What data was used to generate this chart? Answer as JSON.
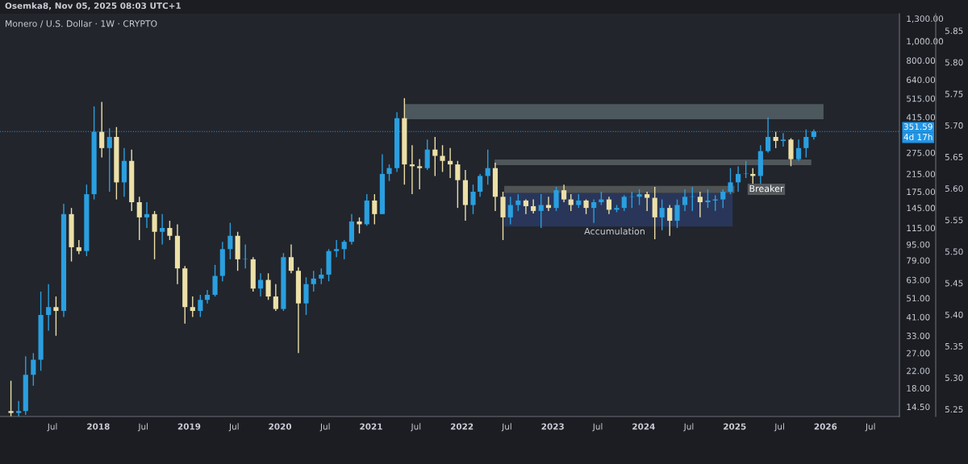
{
  "chart_data": {
    "type": "candlestick",
    "title": "Monero / U.S. Dollar · 1W · CRYPTO",
    "annotations": [
      "Osemka8, Nov 05, 2025 08:03 UTC+1",
      "4d 17h",
      "Accumulation",
      "Breaker"
    ],
    "log": true,
    "xlim": [
      "2016-12-02",
      "2026-10-25"
    ],
    "xticks": [
      {
        "value": "2017-07-01",
        "label": "Jul"
      },
      {
        "value": "2018-01-01",
        "label": "2018"
      },
      {
        "value": "2018-07-01",
        "label": "Jul"
      },
      {
        "value": "2019-01-01",
        "label": "2019"
      },
      {
        "value": "2019-07-01",
        "label": "Jul"
      },
      {
        "value": "2020-01-01",
        "label": "2020"
      },
      {
        "value": "2020-07-01",
        "label": "Jul"
      },
      {
        "value": "2021-01-01",
        "label": "2021"
      },
      {
        "value": "2021-07-01",
        "label": "Jul"
      },
      {
        "value": "2022-01-01",
        "label": "2022"
      },
      {
        "value": "2022-07-01",
        "label": "Jul"
      },
      {
        "value": "2023-01-01",
        "label": "2023"
      },
      {
        "value": "2023-07-01",
        "label": "Jul"
      },
      {
        "value": "2024-01-01",
        "label": "2024"
      },
      {
        "value": "2024-07-01",
        "label": "Jul"
      },
      {
        "value": "2025-01-01",
        "label": "2025"
      },
      {
        "value": "2025-07-01",
        "label": "Jul"
      },
      {
        "value": "2026-01-01",
        "label": "2026"
      },
      {
        "value": "2026-07-01",
        "label": "Jul"
      }
    ],
    "ylim": [
      12.96,
      1375
    ],
    "yticks": [
      {
        "value": 14.5,
        "label": "14.50"
      },
      {
        "value": 18,
        "label": "18.00"
      },
      {
        "value": 22,
        "label": "22.00"
      },
      {
        "value": 27,
        "label": "27.00"
      },
      {
        "value": 33,
        "label": "33.00"
      },
      {
        "value": 41,
        "label": "41.00"
      },
      {
        "value": 51,
        "label": "51.00"
      },
      {
        "value": 63,
        "label": "63.00"
      },
      {
        "value": 79,
        "label": "79.00"
      },
      {
        "value": 95,
        "label": "95.00"
      },
      {
        "value": 115,
        "label": "115.00"
      },
      {
        "value": 145,
        "label": "145.00"
      },
      {
        "value": 175,
        "label": "175.00"
      },
      {
        "value": 215,
        "label": "215.00"
      },
      {
        "value": 275,
        "label": "275.00"
      },
      {
        "value": 415,
        "label": "415.00"
      },
      {
        "value": 515,
        "label": "515.00"
      },
      {
        "value": 640,
        "label": "640.00"
      },
      {
        "value": 800,
        "label": "800.00"
      },
      {
        "value": 1000,
        "label": "1,000.00"
      },
      {
        "value": 1300,
        "label": "1,300.00"
      }
    ],
    "y2lim": [
      5.2385,
      5.877
    ],
    "y2ticks": [
      5.25,
      {
        "value": 5.3,
        "label": "5.30"
      },
      5.35,
      {
        "value": 5.4,
        "label": "5.40"
      },
      5.45,
      {
        "value": 5.5,
        "label": "5.50"
      },
      5.55,
      {
        "value": 5.6,
        "label": "5.60"
      },
      5.65,
      {
        "value": 5.7,
        "label": "5.70"
      },
      5.75,
      {
        "value": 5.8,
        "label": "5.80"
      },
      5.85
    ],
    "ref_lines": [
      {
        "axis": "y",
        "value": 351.59,
        "label": "351.59",
        "color": "#2196e6",
        "line_style": "dotted"
      }
    ],
    "series": [
      {
        "type": "line",
        "x": [
          "2021-05-17",
          "2025-12-24"
        ],
        "values": [
          null,
          null
        ],
        "upper": [
          483,
          483
        ],
        "lower": [
          405,
          405
        ],
        "color": "#4d585e"
      },
      {
        "type": "line",
        "x": [
          "2022-05-12",
          "2025-11-05"
        ],
        "values": [
          null,
          null
        ],
        "upper": [
          254,
          254
        ],
        "lower": [
          238,
          238
        ],
        "color": "#50565a"
      },
      {
        "type": "line",
        "x": [
          "2022-06-20",
          "2024-12-31"
        ],
        "values": [
          null,
          null
        ],
        "upper": [
          187,
          187
        ],
        "lower": [
          172,
          172
        ],
        "color": "#4f5354"
      },
      {
        "type": "line",
        "x": [
          "2022-06-20",
          "2024-12-24"
        ],
        "values": [
          null,
          null
        ],
        "upper": [
          172,
          172
        ],
        "lower": [
          117,
          117
        ],
        "color": "#293659"
      },
      {
        "type": "candlestick",
        "x": [
          "2017-01-15",
          "2017-02-15",
          "2017-03-15",
          "2017-04-15",
          "2017-05-15",
          "2017-06-15",
          "2017-07-15",
          "2017-08-15",
          "2017-09-15",
          "2017-10-15",
          "2017-11-15",
          "2017-12-15",
          "2018-01-15",
          "2018-02-15",
          "2018-03-15",
          "2018-04-15",
          "2018-05-15",
          "2018-06-15",
          "2018-07-15",
          "2018-08-15",
          "2018-09-15",
          "2018-10-15",
          "2018-11-15",
          "2018-12-15",
          "2019-01-15",
          "2019-02-15",
          "2019-03-15",
          "2019-04-15",
          "2019-05-15",
          "2019-06-15",
          "2019-07-15",
          "2019-08-15",
          "2019-09-15",
          "2019-10-15",
          "2019-11-15",
          "2019-12-15",
          "2020-01-15",
          "2020-02-15",
          "2020-03-15",
          "2020-04-15",
          "2020-05-15",
          "2020-06-15",
          "2020-07-15",
          "2020-08-15",
          "2020-09-15",
          "2020-10-15",
          "2020-11-15",
          "2020-12-15",
          "2021-01-15",
          "2021-02-15",
          "2021-03-15",
          "2021-04-15",
          "2021-05-15",
          "2021-06-15",
          "2021-07-15",
          "2021-08-15",
          "2021-09-15",
          "2021-10-15",
          "2021-11-15",
          "2021-12-15",
          "2022-01-15",
          "2022-02-15",
          "2022-03-15",
          "2022-04-15",
          "2022-05-15",
          "2022-06-15",
          "2022-07-15",
          "2022-08-15",
          "2022-09-15",
          "2022-10-15",
          "2022-11-15",
          "2022-12-15",
          "2023-01-15",
          "2023-02-15",
          "2023-03-15",
          "2023-04-15",
          "2023-05-15",
          "2023-06-15",
          "2023-07-15",
          "2023-08-15",
          "2023-09-15",
          "2023-10-15",
          "2023-11-15",
          "2023-12-15",
          "2024-01-15",
          "2024-02-15",
          "2024-03-15",
          "2024-04-15",
          "2024-05-15",
          "2024-06-15",
          "2024-07-15",
          "2024-08-15",
          "2024-09-15",
          "2024-10-15",
          "2024-11-15",
          "2024-12-15",
          "2025-01-15",
          "2025-02-15",
          "2025-03-15",
          "2025-04-15",
          "2025-05-15",
          "2025-06-15",
          "2025-07-15",
          "2025-08-15",
          "2025-09-15",
          "2025-10-15",
          "2025-11-15"
        ],
        "ohlc": [
          [
            13.8,
            19.6,
            13.0,
            13.5
          ],
          [
            13.5,
            15.5,
            13.0,
            13.8
          ],
          [
            13.8,
            26,
            13.2,
            21
          ],
          [
            21,
            27,
            18.5,
            25
          ],
          [
            25,
            55,
            22,
            42
          ],
          [
            42,
            60,
            35,
            46
          ],
          [
            46,
            52,
            33,
            44
          ],
          [
            44,
            152,
            41,
            135
          ],
          [
            135,
            145,
            78,
            92
          ],
          [
            92,
            100,
            85,
            88
          ],
          [
            88,
            190,
            83,
            170
          ],
          [
            170,
            470,
            160,
            350
          ],
          [
            350,
            495,
            260,
            290
          ],
          [
            290,
            365,
            175,
            330
          ],
          [
            330,
            370,
            160,
            195
          ],
          [
            195,
            290,
            165,
            250
          ],
          [
            250,
            285,
            140,
            155
          ],
          [
            155,
            165,
            100,
            130
          ],
          [
            130,
            155,
            115,
            135
          ],
          [
            135,
            140,
            80,
            110
          ],
          [
            110,
            135,
            95,
            115
          ],
          [
            115,
            125,
            100,
            105
          ],
          [
            105,
            120,
            60,
            72
          ],
          [
            72,
            74,
            38,
            46
          ],
          [
            46,
            52,
            41,
            44
          ],
          [
            44,
            53,
            41,
            50
          ],
          [
            50,
            56,
            48,
            53
          ],
          [
            53,
            75,
            52,
            66
          ],
          [
            66,
            98,
            62,
            90
          ],
          [
            90,
            122,
            80,
            105
          ],
          [
            105,
            110,
            70,
            80
          ],
          [
            80,
            95,
            72,
            80
          ],
          [
            80,
            82,
            55,
            57
          ],
          [
            57,
            68,
            52,
            63
          ],
          [
            63,
            68,
            50,
            52
          ],
          [
            52,
            60,
            44,
            45
          ],
          [
            45,
            86,
            44,
            82
          ],
          [
            82,
            95,
            68,
            70
          ],
          [
            70,
            73,
            27,
            48
          ],
          [
            48,
            65,
            42,
            60
          ],
          [
            60,
            70,
            55,
            64
          ],
          [
            64,
            72,
            60,
            67
          ],
          [
            67,
            90,
            62,
            88
          ],
          [
            88,
            100,
            82,
            90
          ],
          [
            90,
            100,
            80,
            98
          ],
          [
            98,
            135,
            95,
            124
          ],
          [
            124,
            130,
            108,
            120
          ],
          [
            120,
            170,
            118,
            158
          ],
          [
            158,
            170,
            120,
            135
          ],
          [
            135,
            270,
            135,
            215
          ],
          [
            215,
            240,
            198,
            230
          ],
          [
            230,
            440,
            220,
            410
          ],
          [
            410,
            517,
            190,
            240
          ],
          [
            240,
            300,
            170,
            235
          ],
          [
            235,
            255,
            180,
            230
          ],
          [
            230,
            320,
            225,
            285
          ],
          [
            285,
            330,
            210,
            265
          ],
          [
            265,
            300,
            220,
            250
          ],
          [
            250,
            290,
            205,
            240
          ],
          [
            240,
            250,
            145,
            200
          ],
          [
            200,
            225,
            125,
            150
          ],
          [
            150,
            190,
            135,
            175
          ],
          [
            175,
            215,
            165,
            210
          ],
          [
            210,
            285,
            190,
            230
          ],
          [
            230,
            245,
            140,
            165
          ],
          [
            165,
            175,
            100,
            130
          ],
          [
            130,
            165,
            120,
            150
          ],
          [
            150,
            170,
            140,
            158
          ],
          [
            158,
            160,
            135,
            148
          ],
          [
            148,
            160,
            136,
            140
          ],
          [
            140,
            170,
            115,
            150
          ],
          [
            150,
            165,
            140,
            145
          ],
          [
            145,
            185,
            140,
            178
          ],
          [
            178,
            190,
            155,
            160
          ],
          [
            160,
            170,
            140,
            150
          ],
          [
            150,
            170,
            145,
            158
          ],
          [
            158,
            160,
            135,
            145
          ],
          [
            145,
            160,
            122,
            155
          ],
          [
            155,
            175,
            150,
            160
          ],
          [
            160,
            165,
            135,
            142
          ],
          [
            142,
            150,
            138,
            145
          ],
          [
            145,
            168,
            140,
            165
          ],
          [
            165,
            175,
            145,
            165
          ],
          [
            165,
            180,
            150,
            170
          ],
          [
            170,
            175,
            140,
            163
          ],
          [
            163,
            185,
            101,
            130
          ],
          [
            130,
            160,
            112,
            145
          ],
          [
            145,
            150,
            105,
            125
          ],
          [
            125,
            160,
            115,
            150
          ],
          [
            150,
            180,
            140,
            165
          ],
          [
            165,
            185,
            140,
            165
          ],
          [
            165,
            175,
            130,
            155
          ],
          [
            155,
            180,
            145,
            158
          ],
          [
            158,
            168,
            140,
            160
          ],
          [
            160,
            180,
            145,
            175
          ],
          [
            175,
            230,
            170,
            195
          ],
          [
            195,
            235,
            175,
            215
          ],
          [
            215,
            250,
            205,
            215
          ],
          [
            215,
            230,
            190,
            210
          ],
          [
            210,
            300,
            190,
            280
          ],
          [
            280,
            414,
            275,
            330
          ],
          [
            330,
            350,
            290,
            315
          ],
          [
            315,
            345,
            295,
            320
          ],
          [
            320,
            325,
            235,
            255
          ],
          [
            255,
            320,
            250,
            290
          ],
          [
            290,
            360,
            260,
            330
          ],
          [
            330,
            360,
            320,
            351.59
          ]
        ],
        "colors": [
          "#ece0a8",
          "#2a9fe0",
          "#2a9fe0",
          "#2a9fe0",
          "#2a9fe0",
          "#2a9fe0",
          "#ece0a8",
          "#2a9fe0",
          "#ece0a8",
          "#ece0a8",
          "#2a9fe0",
          "#2a9fe0",
          "#ece0a8",
          "#2a9fe0",
          "#ece0a8",
          "#2a9fe0",
          "#ece0a8",
          "#ece0a8",
          "#2a9fe0",
          "#ece0a8",
          "#2a9fe0",
          "#ece0a8",
          "#ece0a8",
          "#ece0a8",
          "#ece0a8",
          "#2a9fe0",
          "#2a9fe0",
          "#2a9fe0",
          "#2a9fe0",
          "#2a9fe0",
          "#ece0a8",
          "#2a9fe0",
          "#ece0a8",
          "#2a9fe0",
          "#ece0a8",
          "#ece0a8",
          "#2a9fe0",
          "#ece0a8",
          "#ece0a8",
          "#2a9fe0",
          "#2a9fe0",
          "#2a9fe0",
          "#2a9fe0",
          "#2a9fe0",
          "#2a9fe0",
          "#2a9fe0",
          "#ece0a8",
          "#2a9fe0",
          "#ece0a8",
          "#2a9fe0",
          "#2a9fe0",
          "#2a9fe0",
          "#ece0a8",
          "#ece0a8",
          "#ece0a8",
          "#2a9fe0",
          "#ece0a8",
          "#ece0a8",
          "#ece0a8",
          "#ece0a8",
          "#ece0a8",
          "#2a9fe0",
          "#2a9fe0",
          "#2a9fe0",
          "#ece0a8",
          "#ece0a8",
          "#2a9fe0",
          "#2a9fe0",
          "#ece0a8",
          "#ece0a8",
          "#2a9fe0",
          "#ece0a8",
          "#2a9fe0",
          "#ece0a8",
          "#ece0a8",
          "#2a9fe0",
          "#ece0a8",
          "#2a9fe0",
          "#2a9fe0",
          "#ece0a8",
          "#2a9fe0",
          "#2a9fe0",
          "#2a9fe0",
          "#2a9fe0",
          "#ece0a8",
          "#ece0a8",
          "#2a9fe0",
          "#ece0a8",
          "#2a9fe0",
          "#2a9fe0",
          "#2a9fe0",
          "#ece0a8",
          "#2a9fe0",
          "#2a9fe0",
          "#2a9fe0",
          "#2a9fe0",
          "#2a9fe0",
          "#2a9fe0",
          "#ece0a8",
          "#2a9fe0",
          "#2a9fe0",
          "#ece0a8",
          "#2a9fe0",
          "#ece0a8",
          "#2a9fe0",
          "#2a9fe0",
          "#2a9fe0"
        ]
      }
    ]
  }
}
